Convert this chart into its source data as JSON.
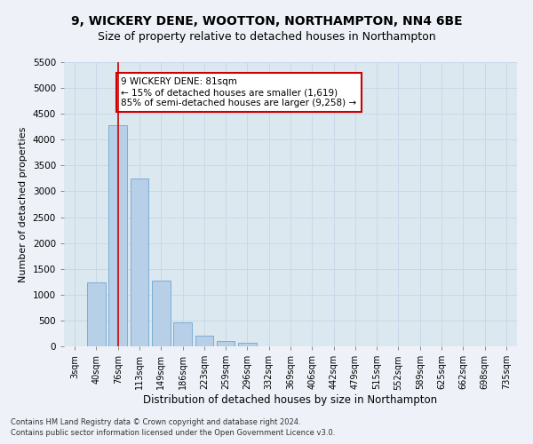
{
  "title": "9, WICKERY DENE, WOOTTON, NORTHAMPTON, NN4 6BE",
  "subtitle": "Size of property relative to detached houses in Northampton",
  "xlabel": "Distribution of detached houses by size in Northampton",
  "ylabel": "Number of detached properties",
  "categories": [
    "3sqm",
    "40sqm",
    "76sqm",
    "113sqm",
    "149sqm",
    "186sqm",
    "223sqm",
    "259sqm",
    "296sqm",
    "332sqm",
    "369sqm",
    "406sqm",
    "442sqm",
    "479sqm",
    "515sqm",
    "552sqm",
    "589sqm",
    "625sqm",
    "662sqm",
    "698sqm",
    "735sqm"
  ],
  "values": [
    0,
    1230,
    4280,
    3250,
    1280,
    460,
    200,
    100,
    70,
    0,
    0,
    0,
    0,
    0,
    0,
    0,
    0,
    0,
    0,
    0,
    0
  ],
  "bar_color": "#b8cfe8",
  "bar_edge_color": "#7aaed4",
  "property_line_x": 2,
  "property_line_color": "#cc0000",
  "annotation_text": "9 WICKERY DENE: 81sqm\n← 15% of detached houses are smaller (1,619)\n85% of semi-detached houses are larger (9,258) →",
  "annotation_box_color": "#ffffff",
  "annotation_box_edge": "#cc0000",
  "ylim": [
    0,
    5500
  ],
  "yticks": [
    0,
    500,
    1000,
    1500,
    2000,
    2500,
    3000,
    3500,
    4000,
    4500,
    5000,
    5500
  ],
  "footnote1": "Contains HM Land Registry data © Crown copyright and database right 2024.",
  "footnote2": "Contains public sector information licensed under the Open Government Licence v3.0.",
  "title_fontsize": 10,
  "subtitle_fontsize": 9,
  "grid_color": "#c8d8e8",
  "bg_color": "#dce8f0",
  "fig_bg_color": "#eef2f8"
}
